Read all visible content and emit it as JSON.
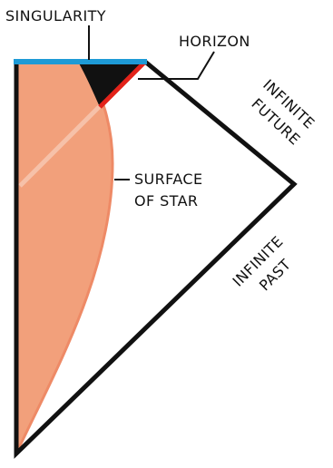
{
  "labels": {
    "singularity": "SINGULARITY",
    "horizon": "HORIZON",
    "surface_of_star_line1": "SURFACE",
    "surface_of_star_line2": "OF STAR",
    "infinite_future_line1": "INFINITE",
    "infinite_future_line2": "FUTURE",
    "infinite_past_line1": "INFINITE",
    "infinite_past_line2": "PAST"
  },
  "colors": {
    "singularity": "#1e9ad6",
    "horizon": "#e2231a",
    "star": "#f2a07b",
    "star_edge": "#ee8a66",
    "black_hole_region": "#111111",
    "outline": "#111111"
  }
}
